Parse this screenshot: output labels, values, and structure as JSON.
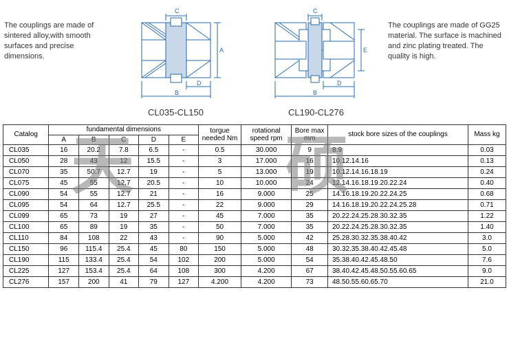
{
  "desc_left": "The couplings are made of sintered alloy,with smooth surfaces and precise dimensions.",
  "desc_right": "The couplings are made of GG25 material. The surface is machined and zinc plating treated. The quality is high.",
  "diagram1_label": "CL035-CL150",
  "diagram2_label": "CL190-CL276",
  "watermark_text": "天硕",
  "colors": {
    "diagram_stroke": "#2a6aa8",
    "diagram_fill": "#ffffff",
    "hatch": "#2a6aa8",
    "border": "#333333",
    "text": "#333333",
    "watermark": "#7f7f7f"
  },
  "headers": {
    "catalog": "Catalog",
    "fundamental": "fundamental dimensions",
    "A": "A",
    "B": "B",
    "C": "C",
    "D": "D",
    "E": "E",
    "torque": "torgue needed Nm",
    "rpm": "rotational speed rpm",
    "boremax": "Bore max mm",
    "stock": "stock bore sizes of the couplings",
    "mass": "Mass kg"
  },
  "rows": [
    {
      "cat": "CL035",
      "A": "16",
      "B": "20.2",
      "C": "7.8",
      "D": "6.5",
      "E": "-",
      "torque": "0.5",
      "rpm": "30.000",
      "boremax": "9",
      "stock": "8.9",
      "mass": "0.03"
    },
    {
      "cat": "CL050",
      "A": "28",
      "B": "43",
      "C": "12",
      "D": "15.5",
      "E": "-",
      "torque": "3",
      "rpm": "17.000",
      "boremax": "16",
      "stock": "10.12.14.16",
      "mass": "0.13"
    },
    {
      "cat": "CL070",
      "A": "35",
      "B": "50.7",
      "C": "12.7",
      "D": "19",
      "E": "-",
      "torque": "5",
      "rpm": "13.000",
      "boremax": "19",
      "stock": "10.12.14.16.18.19",
      "mass": "0.24"
    },
    {
      "cat": "CL075",
      "A": "45",
      "B": "55",
      "C": "12.7",
      "D": "20.5",
      "E": "-",
      "torque": "10",
      "rpm": "10.000",
      "boremax": "24",
      "stock": "12.14.16.18.19.20.22.24",
      "mass": "0.40"
    },
    {
      "cat": "CL090",
      "A": "54",
      "B": "55",
      "C": "12.7",
      "D": "21",
      "E": "-",
      "torque": "16",
      "rpm": "9.000",
      "boremax": "25",
      "stock": "14.16.18.19.20.22.24.25",
      "mass": "0.68"
    },
    {
      "cat": "CL095",
      "A": "54",
      "B": "64",
      "C": "12.7",
      "D": "25.5",
      "E": "-",
      "torque": "22",
      "rpm": "9.000",
      "boremax": "29",
      "stock": "14.16.18.19.20.22.24.25.28",
      "mass": "0.71"
    },
    {
      "cat": "CL099",
      "A": "65",
      "B": "73",
      "C": "19",
      "D": "27",
      "E": "-",
      "torque": "45",
      "rpm": "7.000",
      "boremax": "35",
      "stock": "20.22.24.25.28.30.32.35",
      "mass": "1.22"
    },
    {
      "cat": "CL100",
      "A": "65",
      "B": "89",
      "C": "19",
      "D": "35",
      "E": "-",
      "torque": "50",
      "rpm": "7.000",
      "boremax": "35",
      "stock": "20.22.24.25.28.30.32.35",
      "mass": "1.40"
    },
    {
      "cat": "CL110",
      "A": "84",
      "B": "108",
      "C": "22",
      "D": "43",
      "E": "-",
      "torque": "90",
      "rpm": "5.000",
      "boremax": "42",
      "stock": "25.28.30.32.35.38.40.42",
      "mass": "3.0"
    },
    {
      "cat": "CL150",
      "A": "96",
      "B": "115.4",
      "C": "25.4",
      "D": "45",
      "E": "80",
      "torque": "150",
      "rpm": "5.000",
      "boremax": "48",
      "stock": "30.32.35.38.40.42.45.48",
      "mass": "5.0"
    },
    {
      "cat": "CL190",
      "A": "115",
      "B": "133.4",
      "C": "25.4",
      "D": "54",
      "E": "102",
      "torque": "200",
      "rpm": "5.000",
      "boremax": "54",
      "stock": "35.38.40.42.45.48.50",
      "mass": "7.6"
    },
    {
      "cat": "CL225",
      "A": "127",
      "B": "153.4",
      "C": "25.4",
      "D": "64",
      "E": "108",
      "torque": "300",
      "rpm": "4.200",
      "boremax": "67",
      "stock": "38.40.42.45.48.50.55.60.65",
      "mass": "9.0"
    },
    {
      "cat": "CL276",
      "A": "157",
      "B": "200",
      "C": "41",
      "D": "79",
      "E": "127",
      "torque": "4.200",
      "rpm": "4.200",
      "boremax": "73",
      "stock": "48.50.55.60.65.70",
      "mass": "21.0"
    }
  ]
}
